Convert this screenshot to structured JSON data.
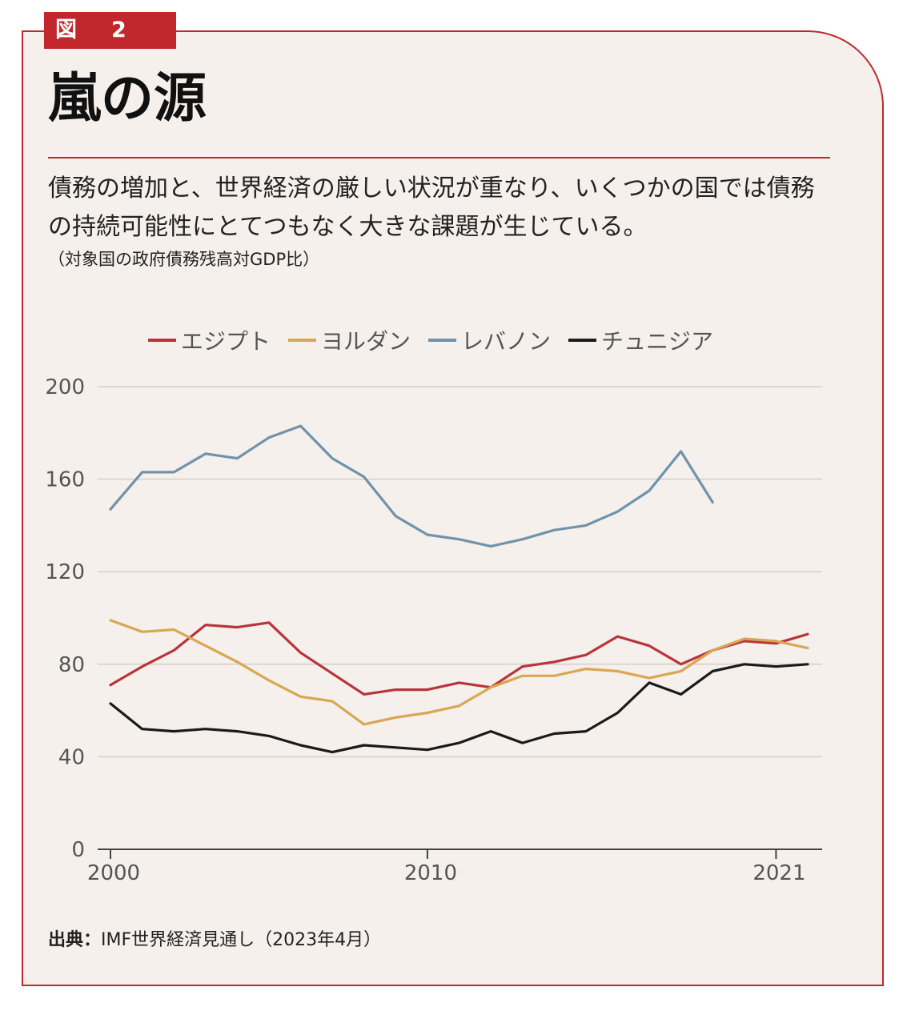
{
  "figure_label": "図　2",
  "title": "嵐の源",
  "description": "債務の増加と、世界経済の厳しい状況が重なり、いくつかの国では債務の持続可能性にとてつもなく大きな課題が生じている。",
  "note": "（対象国の政府債務残高対GDP比）",
  "source_label": "出典：",
  "source_text": "IMF世界経済見通し（2023年4月）",
  "colors": {
    "egypt": "#b8343a",
    "jordan": "#d9a652",
    "lebanon": "#6f93ab",
    "tunisia": "#1a1a1a",
    "accent": "#c1272d"
  },
  "chart_data": {
    "type": "line",
    "title": "",
    "xlabel": "",
    "ylabel": "",
    "ylim": [
      0,
      200
    ],
    "yticks": [
      0,
      40,
      80,
      120,
      160,
      200
    ],
    "xticks": [
      "2000",
      "2010",
      "2021"
    ],
    "grid": true,
    "legend_position": "top",
    "x": [
      2000,
      2001,
      2002,
      2003,
      2004,
      2005,
      2006,
      2007,
      2008,
      2009,
      2010,
      2011,
      2012,
      2013,
      2014,
      2015,
      2016,
      2017,
      2018,
      2019,
      2020,
      2021,
      2022
    ],
    "series": [
      {
        "name": "エジプト",
        "color": "#b8343a",
        "values": [
          71,
          79,
          86,
          97,
          96,
          98,
          85,
          76,
          67,
          69,
          69,
          72,
          70,
          79,
          81,
          84,
          92,
          88,
          80,
          86,
          90,
          89,
          93
        ]
      },
      {
        "name": "ヨルダン",
        "color": "#d9a652",
        "values": [
          99,
          94,
          95,
          88,
          81,
          73,
          66,
          64,
          54,
          57,
          59,
          62,
          70,
          75,
          75,
          78,
          77,
          74,
          77,
          86,
          91,
          90,
          87
        ]
      },
      {
        "name": "レバノン",
        "color": "#6f93ab",
        "values": [
          147,
          163,
          163,
          171,
          169,
          178,
          183,
          169,
          161,
          144,
          136,
          134,
          131,
          134,
          138,
          140,
          146,
          155,
          172,
          150,
          null,
          null,
          null
        ]
      },
      {
        "name": "チュニジア",
        "color": "#1a1a1a",
        "values": [
          63,
          52,
          51,
          52,
          51,
          49,
          45,
          42,
          45,
          44,
          43,
          46,
          51,
          46,
          50,
          51,
          59,
          72,
          67,
          77,
          80,
          79,
          80
        ]
      }
    ]
  }
}
